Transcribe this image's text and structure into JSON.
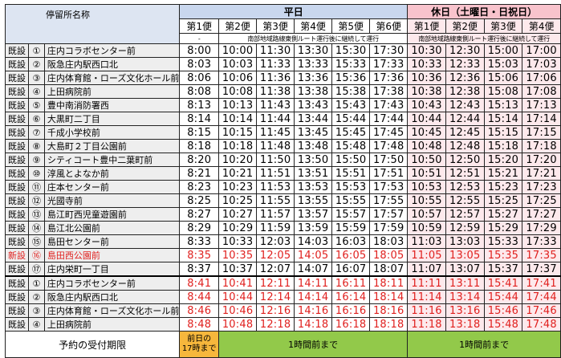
{
  "header": {
    "stop_name_label": "停留所名称",
    "weekday_label": "平日",
    "holiday_label": "休日（土曜日・日祝日）",
    "weekday_trips": [
      "第1便",
      "第2便",
      "第3便",
      "第4便",
      "第5便",
      "第6便"
    ],
    "holiday_trips": [
      "第1便",
      "第2便",
      "第3便",
      "第4便"
    ],
    "weekday_first_note": "-",
    "weekday_note": "南部地域路線東側ルート運行後に継続して運行",
    "holiday_note": "南部地域路線東側ルート運行後に継続して運行"
  },
  "rows": [
    {
      "status": "既設",
      "num": "①",
      "name": "庄内コラボセンター前",
      "weekday": [
        "8:00",
        "10:00",
        "11:30",
        "13:30",
        "15:30",
        "17:30"
      ],
      "holiday": [
        "10:30",
        "12:30",
        "15:00",
        "17:00"
      ]
    },
    {
      "status": "既設",
      "num": "②",
      "name": "阪急庄内駅西口北",
      "weekday": [
        "8:03",
        "10:03",
        "11:33",
        "13:33",
        "15:33",
        "17:33"
      ],
      "holiday": [
        "10:33",
        "12:33",
        "15:03",
        "17:03"
      ]
    },
    {
      "status": "既設",
      "num": "③",
      "name": "庄内体育館・ローズ文化ホール前",
      "weekday": [
        "8:06",
        "10:06",
        "11:36",
        "13:36",
        "15:36",
        "17:36"
      ],
      "holiday": [
        "10:36",
        "12:36",
        "15:06",
        "17:06"
      ]
    },
    {
      "status": "既設",
      "num": "④",
      "name": "上田病院前",
      "weekday": [
        "8:08",
        "10:08",
        "11:38",
        "13:38",
        "15:38",
        "17:38"
      ],
      "holiday": [
        "10:38",
        "12:38",
        "15:08",
        "17:08"
      ]
    },
    {
      "status": "既設",
      "num": "⑤",
      "name": "豊中南消防署西",
      "weekday": [
        "8:13",
        "10:13",
        "11:43",
        "13:43",
        "15:43",
        "17:43"
      ],
      "holiday": [
        "10:43",
        "12:43",
        "15:13",
        "17:13"
      ]
    },
    {
      "status": "既設",
      "num": "⑥",
      "name": "大黒町二丁目",
      "weekday": [
        "8:14",
        "10:14",
        "11:44",
        "13:44",
        "15:44",
        "17:44"
      ],
      "holiday": [
        "10:44",
        "12:44",
        "15:14",
        "17:14"
      ]
    },
    {
      "status": "既設",
      "num": "⑦",
      "name": "千成小学校前",
      "weekday": [
        "8:15",
        "10:15",
        "11:45",
        "13:45",
        "15:45",
        "17:45"
      ],
      "holiday": [
        "10:45",
        "12:45",
        "15:15",
        "17:15"
      ]
    },
    {
      "status": "既設",
      "num": "⑧",
      "name": "大島町２丁目公園前",
      "weekday": [
        "8:18",
        "10:18",
        "11:48",
        "13:48",
        "15:48",
        "17:48"
      ],
      "holiday": [
        "10:48",
        "12:48",
        "15:18",
        "17:18"
      ]
    },
    {
      "status": "既設",
      "num": "⑨",
      "name": "シティコート豊中二葉町前",
      "weekday": [
        "8:20",
        "10:20",
        "11:50",
        "13:50",
        "15:50",
        "17:50"
      ],
      "holiday": [
        "10:50",
        "12:50",
        "15:20",
        "17:20"
      ]
    },
    {
      "status": "既設",
      "num": "⑩",
      "name": "淳風とよなか前",
      "weekday": [
        "8:21",
        "10:21",
        "11:51",
        "13:51",
        "15:51",
        "17:51"
      ],
      "holiday": [
        "10:51",
        "12:51",
        "15:21",
        "17:21"
      ]
    },
    {
      "status": "既設",
      "num": "⑪",
      "name": "庄本センター前",
      "weekday": [
        "8:23",
        "10:23",
        "11:53",
        "13:53",
        "15:53",
        "17:53"
      ],
      "holiday": [
        "10:53",
        "12:53",
        "15:23",
        "17:23"
      ]
    },
    {
      "status": "既設",
      "num": "⑫",
      "name": "光國寺前",
      "weekday": [
        "8:25",
        "10:25",
        "11:55",
        "13:55",
        "15:55",
        "17:55"
      ],
      "holiday": [
        "10:55",
        "12:55",
        "15:25",
        "17:25"
      ]
    },
    {
      "status": "既設",
      "num": "⑬",
      "name": "島江町西児童遊園前",
      "weekday": [
        "8:27",
        "10:27",
        "11:57",
        "13:57",
        "15:57",
        "17:57"
      ],
      "holiday": [
        "10:57",
        "12:57",
        "15:27",
        "17:27"
      ]
    },
    {
      "status": "既設",
      "num": "⑭",
      "name": "島江北公園前",
      "weekday": [
        "8:29",
        "10:29",
        "11:59",
        "13:59",
        "15:59",
        "17:59"
      ],
      "holiday": [
        "10:59",
        "12:59",
        "15:29",
        "17:29"
      ]
    },
    {
      "status": "既設",
      "num": "⑮",
      "name": "島田センター前",
      "weekday": [
        "8:33",
        "10:33",
        "12:03",
        "14:03",
        "16:03",
        "18:03"
      ],
      "holiday": [
        "11:03",
        "13:03",
        "15:33",
        "17:33"
      ]
    },
    {
      "status": "新設",
      "num": "⑯",
      "name": "島田西公園前",
      "weekday": [
        "8:35",
        "10:35",
        "12:05",
        "14:05",
        "16:05",
        "18:05"
      ],
      "holiday": [
        "11:05",
        "13:05",
        "15:35",
        "17:35"
      ]
    },
    {
      "status": "既設",
      "num": "⑰",
      "name": "庄内栄町一丁目",
      "weekday": [
        "8:37",
        "10:37",
        "12:07",
        "14:07",
        "16:07",
        "18:07"
      ],
      "holiday": [
        "11:07",
        "13:07",
        "15:37",
        "17:37"
      ]
    },
    {
      "status": "既設",
      "num": "①",
      "name": "庄内コラボセンター前",
      "weekday": [
        "8:41",
        "10:41",
        "12:11",
        "14:11",
        "16:11",
        "18:11"
      ],
      "holiday": [
        "11:11",
        "13:11",
        "15:41",
        "17:41"
      ]
    },
    {
      "status": "既設",
      "num": "②",
      "name": "阪急庄内駅西口北",
      "weekday": [
        "8:44",
        "10:44",
        "12:14",
        "14:14",
        "16:14",
        "18:14"
      ],
      "holiday": [
        "11:14",
        "13:14",
        "15:44",
        "17:44"
      ]
    },
    {
      "status": "既設",
      "num": "③",
      "name": "庄内体育館・ローズ文化ホール前",
      "weekday": [
        "8:46",
        "10:46",
        "12:16",
        "14:16",
        "16:16",
        "18:16"
      ],
      "holiday": [
        "11:16",
        "13:16",
        "15:46",
        "17:46"
      ]
    },
    {
      "status": "既設",
      "num": "④",
      "name": "上田病院前",
      "weekday": [
        "8:48",
        "10:48",
        "12:18",
        "14:18",
        "16:18",
        "18:18"
      ],
      "holiday": [
        "11:18",
        "13:18",
        "15:48",
        "17:48"
      ]
    }
  ],
  "footer": {
    "label": "予約の受付期限",
    "orange_line1": "前日の",
    "orange_line2": "17時まで",
    "weekday_green": "1時間前まで",
    "holiday_green": "1時間前まで"
  },
  "colors": {
    "weekday_header": "#c9d7ee",
    "holiday_header": "#f8c3cc",
    "holiday_cells": "#fde9ec",
    "stop_cells": "#eeeeee",
    "red_text": "#e0201e",
    "orange": "#f6b73c",
    "green": "#92c94a"
  }
}
